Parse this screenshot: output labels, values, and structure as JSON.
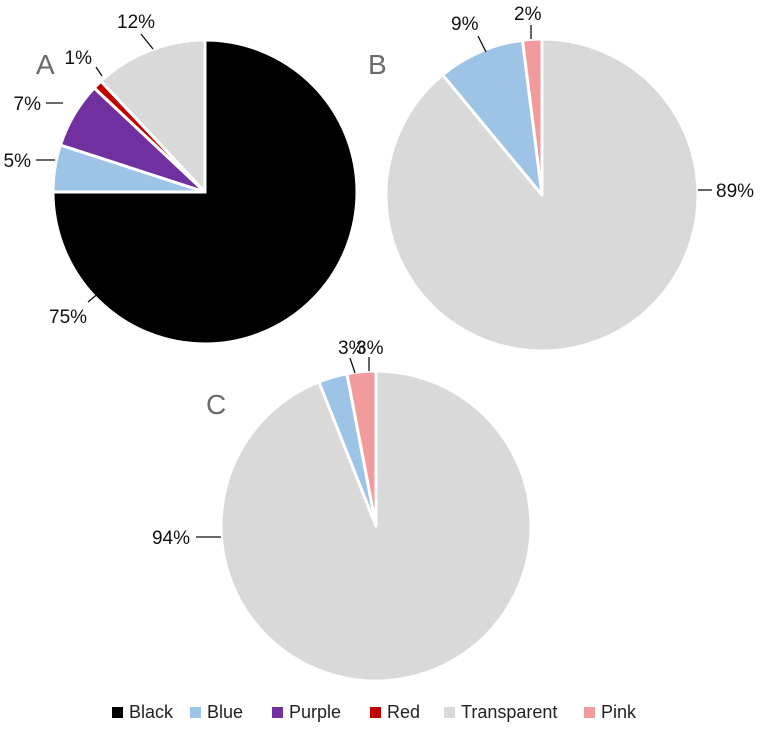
{
  "chart_data": [
    {
      "type": "pie",
      "panel": "A",
      "slices": [
        {
          "label": "Black",
          "value": 75,
          "display": "75%"
        },
        {
          "label": "Blue",
          "value": 5,
          "display": "5%"
        },
        {
          "label": "Purple",
          "value": 7,
          "display": "7%"
        },
        {
          "label": "Red",
          "value": 1,
          "display": "1%"
        },
        {
          "label": "Transparent",
          "value": 12,
          "display": "12%"
        }
      ]
    },
    {
      "type": "pie",
      "panel": "B",
      "slices": [
        {
          "label": "Transparent",
          "value": 89,
          "display": "89%"
        },
        {
          "label": "Blue",
          "value": 9,
          "display": "9%"
        },
        {
          "label": "Pink",
          "value": 2,
          "display": "2%"
        }
      ]
    },
    {
      "type": "pie",
      "panel": "C",
      "slices": [
        {
          "label": "Transparent",
          "value": 94,
          "display": "94%"
        },
        {
          "label": "Blue",
          "value": 3,
          "display": "3%"
        },
        {
          "label": "Pink",
          "value": 3,
          "display": "3%"
        }
      ]
    }
  ],
  "legend": {
    "placement": "bottom",
    "items": [
      {
        "label": "Black",
        "color": "#000000"
      },
      {
        "label": "Blue",
        "color": "#9dc3e6"
      },
      {
        "label": "Purple",
        "color": "#7030a0"
      },
      {
        "label": "Red",
        "color": "#c00000"
      },
      {
        "label": "Transparent",
        "color": "#d9d9d9"
      },
      {
        "label": "Pink",
        "color": "#f19b9c"
      }
    ]
  }
}
